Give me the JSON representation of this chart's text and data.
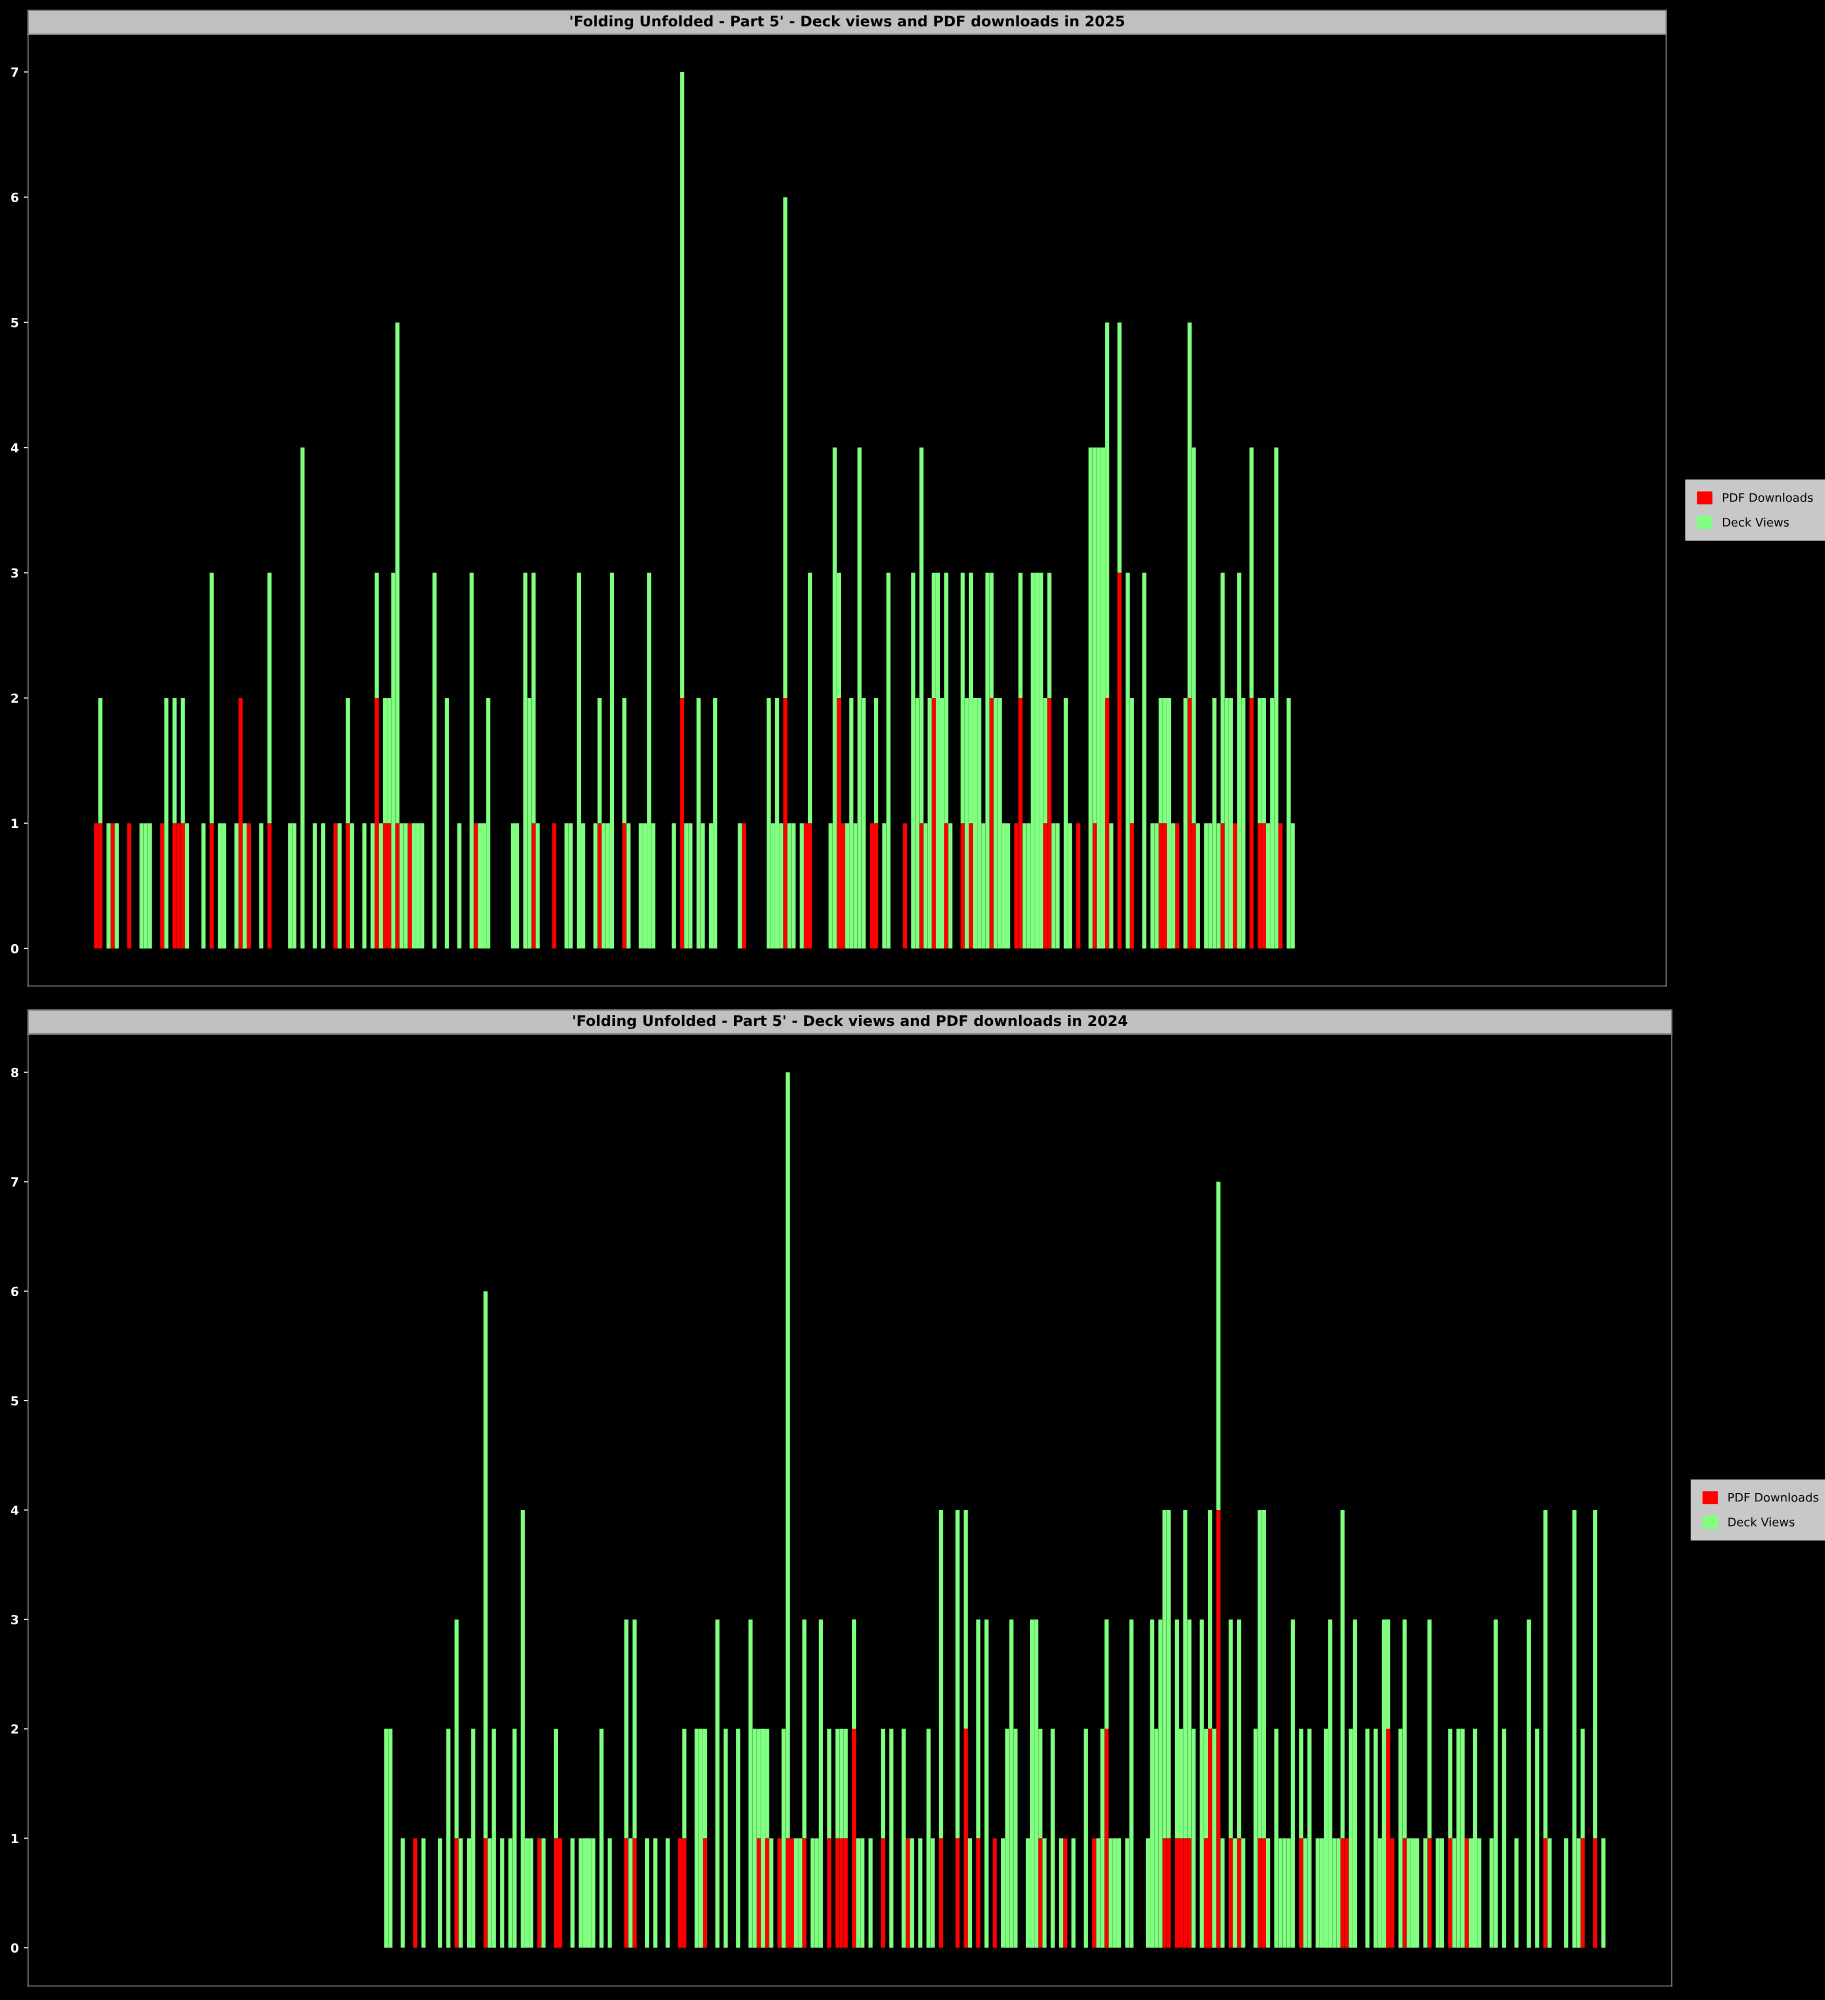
{
  "chart_data": [
    {
      "type": "bar",
      "title": "'Folding Unfolded - Part 5' - Deck views and PDF downloads in 2025",
      "stacked": true,
      "legend": "right",
      "tick_labels": "y",
      "ylim": [
        -0.3,
        7.3
      ],
      "yticks": [
        0,
        1,
        2,
        3,
        4,
        5,
        6,
        7
      ],
      "categories": [
        null,
        null,
        null,
        null,
        null,
        null,
        null,
        null,
        null,
        null,
        null,
        null,
        null,
        null,
        null,
        null,
        null,
        null,
        null,
        null,
        null,
        null,
        null,
        null,
        null,
        null,
        null,
        null,
        null,
        null,
        null,
        null,
        null,
        null,
        null,
        null,
        null,
        null,
        null,
        null,
        null,
        null,
        null,
        null,
        null,
        null,
        null,
        null,
        null,
        null,
        null,
        null,
        null,
        null,
        null,
        null,
        null,
        null,
        null,
        null,
        null,
        null,
        null,
        null,
        null,
        null,
        null,
        null,
        null,
        null,
        null,
        null,
        null,
        null,
        null,
        null,
        null,
        null,
        null,
        null,
        null,
        null,
        null,
        null,
        null,
        null,
        null,
        null,
        null,
        null,
        null,
        null,
        null,
        null,
        null,
        null,
        null,
        null,
        null,
        null,
        null,
        null,
        null,
        null,
        null,
        null,
        null,
        null,
        null,
        null,
        null,
        null,
        null,
        null,
        null,
        null,
        null,
        null,
        null,
        null,
        null,
        null,
        null,
        null,
        null,
        null,
        null,
        null,
        null,
        null,
        null,
        null,
        null,
        null,
        null,
        null,
        null,
        null,
        null,
        null,
        null,
        null,
        null,
        null,
        null,
        null,
        null,
        null,
        null,
        null,
        null,
        null,
        null,
        null,
        null,
        null,
        null,
        null,
        null,
        null,
        null,
        null,
        null,
        null,
        null,
        null,
        null,
        null,
        null,
        null,
        null,
        null,
        null,
        null,
        null,
        null,
        null,
        null,
        null,
        null,
        null,
        null,
        null,
        null,
        null,
        null,
        null,
        null,
        null,
        null,
        null,
        null,
        null,
        null,
        null,
        null,
        null,
        null,
        null,
        null,
        null,
        null,
        null,
        null,
        null,
        null,
        null,
        null,
        null,
        null,
        null,
        null,
        null,
        null,
        null,
        null,
        null,
        null,
        null,
        null,
        null,
        null,
        null,
        null,
        null,
        null,
        null,
        null,
        null,
        null,
        null,
        null,
        null,
        null,
        null,
        null,
        null,
        null,
        null,
        null,
        null,
        null,
        null,
        null,
        null,
        null,
        null,
        null,
        null,
        null,
        null,
        null,
        null,
        null,
        null,
        null,
        null,
        null,
        null,
        null,
        null,
        null,
        null,
        null,
        null,
        null,
        null,
        null,
        null,
        null,
        null,
        null,
        null,
        null,
        null,
        null,
        null,
        null,
        null,
        null,
        null,
        null,
        null,
        null,
        null,
        null,
        null,
        null,
        null,
        null,
        null,
        null,
        null,
        null,
        null,
        null,
        null,
        null,
        null,
        null,
        null,
        null,
        null,
        null,
        null,
        null,
        null,
        null,
        null,
        null,
        null,
        null,
        null,
        null,
        null,
        null,
        null,
        null,
        null,
        null,
        null,
        null,
        null,
        null,
        null,
        null,
        null,
        null,
        null,
        null,
        null,
        null,
        null,
        null,
        null,
        null,
        null,
        null,
        null,
        null,
        null,
        null,
        null,
        null,
        null,
        null,
        null,
        null,
        null,
        null,
        null,
        null,
        null,
        null,
        null,
        null,
        null,
        null,
        null,
        null,
        null,
        null,
        null,
        null,
        null,
        null,
        null,
        null,
        null,
        null,
        null,
        null,
        null,
        null,
        null,
        null,
        null,
        null,
        null,
        null,
        null,
        null,
        null,
        null,
        null,
        null,
        null,
        null,
        null,
        null,
        null,
        null,
        null,
        null,
        null,
        null,
        null
      ],
      "series": [
        {
          "name": "PDF Downloads",
          "color": "#ff0000",
          "values": [
            0,
            0,
            0,
            0,
            0,
            0,
            0,
            0,
            0,
            0,
            0,
            0,
            0,
            0,
            0,
            0,
            1,
            1,
            0,
            0,
            1,
            0,
            0,
            0,
            1,
            0,
            0,
            0,
            0,
            0,
            0,
            0,
            1,
            0,
            0,
            1,
            1,
            1,
            0,
            0,
            0,
            0,
            0,
            0,
            1,
            0,
            0,
            0,
            0,
            0,
            0,
            2,
            0,
            1,
            0,
            0,
            0,
            0,
            1,
            0,
            0,
            0,
            0,
            0,
            0,
            0,
            0,
            0,
            0,
            0,
            0,
            0,
            0,
            0,
            1,
            0,
            0,
            1,
            0,
            0,
            0,
            0,
            0,
            0,
            2,
            0,
            1,
            1,
            0,
            1,
            0,
            0,
            1,
            0,
            0,
            0,
            0,
            0,
            0,
            0,
            0,
            0,
            0,
            0,
            0,
            0,
            0,
            0,
            1,
            0,
            0,
            0,
            0,
            0,
            0,
            0,
            0,
            0,
            0,
            0,
            0,
            0,
            1,
            0,
            0,
            0,
            0,
            1,
            0,
            0,
            0,
            0,
            0,
            0,
            0,
            0,
            0,
            0,
            1,
            0,
            0,
            0,
            0,
            0,
            1,
            0,
            0,
            0,
            0,
            0,
            0,
            0,
            0,
            0,
            0,
            0,
            0,
            0,
            2,
            0,
            0,
            0,
            0,
            0,
            0,
            0,
            0,
            0,
            0,
            0,
            0,
            0,
            0,
            1,
            0,
            0,
            0,
            0,
            0,
            0,
            0,
            0,
            0,
            2,
            0,
            0,
            0,
            0,
            1,
            1,
            0,
            0,
            0,
            0,
            0,
            0,
            2,
            1,
            0,
            0,
            0,
            0,
            0,
            0,
            1,
            1,
            0,
            0,
            0,
            0,
            0,
            0,
            1,
            0,
            0,
            0,
            1,
            0,
            0,
            2,
            0,
            0,
            1,
            0,
            0,
            0,
            1,
            0,
            1,
            0,
            0,
            0,
            0,
            2,
            0,
            0,
            0,
            0,
            0,
            1,
            2,
            0,
            0,
            0,
            0,
            0,
            1,
            2,
            0,
            0,
            0,
            0,
            0,
            0,
            1,
            0,
            0,
            0,
            1,
            0,
            0,
            2,
            0,
            0,
            3,
            0,
            0,
            1,
            0,
            0,
            0,
            0,
            0,
            0,
            1,
            1,
            0,
            0,
            1,
            0,
            0,
            2,
            1,
            0,
            0,
            0,
            0,
            0,
            0,
            1,
            0,
            0,
            1,
            0,
            0,
            0,
            2,
            0,
            1,
            1,
            0,
            0,
            0,
            1,
            0,
            0,
            0,
            0,
            0,
            0,
            0,
            0,
            0,
            0,
            0,
            0,
            0,
            0,
            0,
            0,
            0,
            0,
            0,
            0,
            0,
            0,
            0,
            0,
            0,
            0,
            0,
            0,
            0,
            0,
            0,
            0,
            0,
            0,
            0,
            0,
            0,
            0,
            0,
            0,
            0,
            0,
            0,
            0,
            0,
            0,
            0,
            0,
            0,
            0,
            0,
            0,
            0,
            0,
            0,
            0,
            0,
            0,
            0,
            0,
            0,
            0,
            0,
            0,
            0,
            0,
            0,
            0,
            0,
            0,
            0,
            0,
            0,
            0,
            0,
            0,
            0,
            0,
            0,
            0,
            0,
            0,
            0,
            0,
            0,
            0,
            0,
            0,
            0,
            0,
            0,
            0,
            0
          ]
        },
        {
          "name": "Deck Views",
          "color": "#80ff80",
          "values": [
            0,
            0,
            0,
            0,
            0,
            0,
            0,
            0,
            0,
            0,
            0,
            0,
            0,
            0,
            0,
            0,
            0,
            1,
            0,
            1,
            0,
            1,
            0,
            0,
            0,
            0,
            0,
            1,
            1,
            1,
            0,
            0,
            0,
            2,
            0,
            1,
            0,
            1,
            1,
            0,
            0,
            0,
            1,
            0,
            2,
            0,
            1,
            1,
            0,
            0,
            1,
            0,
            1,
            0,
            0,
            0,
            1,
            0,
            2,
            0,
            0,
            0,
            0,
            1,
            1,
            0,
            4,
            0,
            0,
            1,
            0,
            1,
            0,
            0,
            0,
            1,
            0,
            1,
            1,
            0,
            0,
            1,
            0,
            1,
            1,
            1,
            1,
            1,
            3,
            4,
            1,
            1,
            0,
            1,
            1,
            1,
            0,
            0,
            3,
            0,
            0,
            2,
            0,
            0,
            1,
            0,
            0,
            3,
            0,
            1,
            1,
            2,
            0,
            0,
            0,
            0,
            0,
            1,
            1,
            0,
            3,
            2,
            2,
            1,
            0,
            0,
            0,
            0,
            0,
            0,
            1,
            1,
            0,
            3,
            1,
            0,
            0,
            1,
            1,
            1,
            1,
            3,
            0,
            0,
            1,
            1,
            0,
            0,
            1,
            1,
            3,
            1,
            0,
            0,
            0,
            0,
            1,
            0,
            5,
            1,
            1,
            0,
            2,
            1,
            0,
            1,
            2,
            0,
            0,
            0,
            0,
            0,
            1,
            0,
            0,
            0,
            0,
            0,
            0,
            2,
            1,
            2,
            1,
            4,
            1,
            1,
            0,
            1,
            0,
            2,
            0,
            0,
            0,
            0,
            1,
            4,
            1,
            0,
            1,
            2,
            1,
            4,
            2,
            0,
            0,
            1,
            0,
            1,
            3,
            0,
            0,
            0,
            0,
            0,
            3,
            2,
            3,
            1,
            2,
            1,
            3,
            2,
            2,
            1,
            0,
            0,
            2,
            2,
            2,
            2,
            2,
            1,
            3,
            1,
            2,
            2,
            1,
            1,
            0,
            0,
            1,
            1,
            1,
            3,
            3,
            3,
            1,
            1,
            1,
            1,
            0,
            2,
            1,
            0,
            0,
            0,
            0,
            4,
            3,
            4,
            4,
            3,
            1,
            0,
            2,
            0,
            3,
            1,
            0,
            0,
            3,
            0,
            1,
            1,
            1,
            1,
            2,
            1,
            0,
            0,
            2,
            3,
            3,
            1,
            0,
            1,
            1,
            2,
            1,
            2,
            2,
            2,
            0,
            3,
            2,
            0,
            2,
            0,
            1,
            1,
            1,
            2,
            4,
            0,
            0,
            2,
            1,
            0,
            0,
            0,
            0,
            0,
            0,
            0,
            0,
            0,
            0,
            0,
            0,
            0,
            0,
            0,
            0,
            0,
            0,
            0,
            0,
            0,
            0,
            0,
            0,
            0,
            0,
            0,
            0,
            0,
            0,
            0,
            0,
            0,
            0,
            0,
            0,
            0,
            0,
            0,
            0,
            0,
            0,
            0,
            0,
            0,
            0,
            0,
            0,
            0,
            0,
            0,
            0,
            0,
            0,
            0,
            0,
            0,
            0,
            0,
            0,
            0,
            0,
            0,
            0,
            0,
            0,
            0,
            0,
            0,
            0,
            0,
            0,
            0,
            0,
            0,
            0,
            0,
            0,
            0,
            0,
            0,
            0,
            0,
            0,
            0,
            0,
            0,
            0,
            0,
            0
          ]
        }
      ]
    },
    {
      "type": "bar",
      "title": "'Folding Unfolded - Part 5' - Deck views and PDF downloads in 2024",
      "stacked": true,
      "legend": "right",
      "tick_labels": "y",
      "ylim": [
        -0.35,
        8.35
      ],
      "yticks": [
        0,
        1,
        2,
        3,
        4,
        5,
        6,
        7,
        8
      ],
      "categories": [
        null,
        null,
        null,
        null,
        null,
        null,
        null,
        null,
        null,
        null,
        null,
        null,
        null,
        null,
        null,
        null,
        null,
        null,
        null,
        null,
        null,
        null,
        null,
        null,
        null,
        null,
        null,
        null,
        null,
        null,
        null,
        null,
        null,
        null,
        null,
        null,
        null,
        null,
        null,
        null,
        null,
        null,
        null,
        null,
        null,
        null,
        null,
        null,
        null,
        null,
        null,
        null,
        null,
        null,
        null,
        null,
        null,
        null,
        null,
        null,
        null,
        null,
        null,
        null,
        null,
        null,
        null,
        null,
        null,
        null,
        null,
        null,
        null,
        null,
        null,
        null,
        null,
        null,
        null,
        null,
        null,
        null,
        null,
        null,
        null,
        null,
        null,
        null,
        null,
        null,
        null,
        null,
        null,
        null,
        null,
        null,
        null,
        null,
        null,
        null,
        null,
        null,
        null,
        null,
        null,
        null,
        null,
        null,
        null,
        null,
        null,
        null,
        null,
        null,
        null,
        null,
        null,
        null,
        null,
        null,
        null,
        null,
        null,
        null,
        null,
        null,
        null,
        null,
        null,
        null,
        null,
        null,
        null,
        null,
        null,
        null,
        null,
        null,
        null,
        null,
        null,
        null,
        null,
        null,
        null,
        null,
        null,
        null,
        null,
        null,
        null,
        null,
        null,
        null,
        null,
        null,
        null,
        null,
        null,
        null,
        null,
        null,
        null,
        null,
        null,
        null,
        null,
        null,
        null,
        null,
        null,
        null,
        null,
        null,
        null,
        null,
        null,
        null,
        null,
        null,
        null,
        null,
        null,
        null,
        null,
        null,
        null,
        null,
        null,
        null,
        null,
        null,
        null,
        null,
        null,
        null,
        null,
        null,
        null,
        null,
        null,
        null,
        null,
        null,
        null,
        null,
        null,
        null,
        null,
        null,
        null,
        null,
        null,
        null,
        null,
        null,
        null,
        null,
        null,
        null,
        null,
        null,
        null,
        null,
        null,
        null,
        null,
        null,
        null,
        null,
        null,
        null,
        null,
        null,
        null,
        null,
        null,
        null,
        null,
        null,
        null,
        null,
        null,
        null,
        null,
        null,
        null,
        null,
        null,
        null,
        null,
        null,
        null,
        null,
        null,
        null,
        null,
        null,
        null,
        null,
        null,
        null,
        null,
        null,
        null,
        null,
        null,
        null,
        null,
        null,
        null,
        null,
        null,
        null,
        null,
        null,
        null,
        null,
        null,
        null,
        null,
        null,
        null,
        null,
        null,
        null,
        null,
        null,
        null,
        null,
        null,
        null,
        null,
        null,
        null,
        null,
        null,
        null,
        null,
        null,
        null,
        null,
        null,
        null,
        null,
        null,
        null,
        null,
        null,
        null,
        null,
        null,
        null,
        null,
        null,
        null,
        null,
        null,
        null,
        null,
        null,
        null,
        null,
        null,
        null,
        null,
        null,
        null,
        null,
        null,
        null,
        null,
        null,
        null,
        null,
        null,
        null,
        null,
        null,
        null,
        null,
        null,
        null,
        null,
        null,
        null,
        null,
        null,
        null,
        null,
        null,
        null,
        null,
        null,
        null,
        null,
        null,
        null,
        null,
        null,
        null,
        null,
        null,
        null,
        null,
        null,
        null,
        null,
        null,
        null,
        null,
        null,
        null,
        null,
        null,
        null,
        null,
        null,
        null,
        null,
        null,
        null,
        null,
        null,
        null,
        null,
        null,
        null,
        null,
        null,
        null,
        null,
        null,
        null,
        null,
        null,
        null
      ],
      "series": [
        {
          "name": "PDF Downloads",
          "color": "#ff0000",
          "values": [
            0,
            0,
            0,
            0,
            0,
            0,
            0,
            0,
            0,
            0,
            0,
            0,
            0,
            0,
            0,
            0,
            0,
            0,
            0,
            0,
            0,
            0,
            0,
            0,
            0,
            0,
            0,
            0,
            0,
            0,
            0,
            0,
            0,
            0,
            0,
            0,
            0,
            0,
            0,
            0,
            0,
            0,
            0,
            0,
            0,
            0,
            0,
            0,
            0,
            0,
            0,
            0,
            0,
            0,
            0,
            0,
            0,
            0,
            0,
            0,
            0,
            0,
            0,
            0,
            0,
            0,
            0,
            0,
            0,
            0,
            0,
            0,
            0,
            0,
            0,
            0,
            0,
            0,
            0,
            0,
            0,
            0,
            0,
            0,
            0,
            0,
            0,
            0,
            0,
            0,
            0,
            0,
            0,
            1,
            0,
            0,
            0,
            0,
            0,
            0,
            0,
            0,
            0,
            1,
            0,
            0,
            0,
            0,
            0,
            0,
            1,
            0,
            0,
            0,
            0,
            0,
            0,
            0,
            0,
            0,
            0,
            0,
            0,
            1,
            0,
            0,
            0,
            1,
            1,
            0,
            0,
            0,
            0,
            0,
            0,
            0,
            0,
            0,
            0,
            0,
            0,
            0,
            0,
            0,
            1,
            0,
            1,
            0,
            0,
            0,
            0,
            0,
            0,
            0,
            0,
            0,
            0,
            1,
            1,
            0,
            0,
            0,
            0,
            1,
            0,
            0,
            0,
            0,
            0,
            0,
            0,
            0,
            0,
            0,
            0,
            0,
            1,
            0,
            1,
            0,
            0,
            1,
            0,
            1,
            1,
            0,
            0,
            1,
            0,
            0,
            0,
            0,
            0,
            1,
            0,
            1,
            1,
            1,
            0,
            2,
            0,
            0,
            0,
            0,
            0,
            0,
            1,
            0,
            0,
            0,
            0,
            0,
            1,
            0,
            0,
            0,
            0,
            0,
            0,
            0,
            1,
            0,
            0,
            0,
            1,
            0,
            2,
            0,
            0,
            1,
            0,
            0,
            0,
            1,
            0,
            0,
            0,
            0,
            0,
            0,
            0,
            0,
            0,
            0,
            1,
            0,
            0,
            0,
            0,
            0,
            1,
            0,
            0,
            0,
            0,
            0,
            0,
            1,
            0,
            0,
            2,
            0,
            0,
            0,
            0,
            0,
            0,
            0,
            0,
            0,
            0,
            0,
            0,
            0,
            1,
            1,
            0,
            1,
            1,
            1,
            1,
            0,
            0,
            0,
            1,
            2,
            0,
            4,
            0,
            0,
            1,
            0,
            1,
            0,
            0,
            0,
            0,
            1,
            1,
            0,
            0,
            0,
            0,
            0,
            0,
            0,
            0,
            1,
            0,
            0,
            0,
            0,
            0,
            0,
            0,
            0,
            0,
            1,
            1,
            0,
            0,
            0,
            0,
            0,
            0,
            0,
            0,
            0,
            2,
            1,
            0,
            0,
            1,
            0,
            0,
            0,
            0,
            0,
            1,
            0,
            0,
            0,
            0,
            1,
            0,
            0,
            0,
            1,
            0,
            0,
            0,
            0,
            0,
            0,
            0,
            0,
            0,
            0,
            0,
            0,
            0,
            0,
            0,
            0,
            0,
            0,
            1,
            0,
            0,
            0,
            0,
            0,
            0,
            0,
            0,
            1,
            0,
            0,
            1,
            0,
            0,
            0,
            0,
            0,
            0,
            0,
            0,
            0,
            0,
            0,
            0,
            0,
            0,
            0,
            0,
            0,
            0
          ]
        },
        {
          "name": "Deck Views",
          "color": "#80ff80",
          "values": [
            0,
            0,
            0,
            0,
            0,
            0,
            0,
            0,
            0,
            0,
            0,
            0,
            0,
            0,
            0,
            0,
            0,
            0,
            0,
            0,
            0,
            0,
            0,
            0,
            0,
            0,
            0,
            0,
            0,
            0,
            0,
            0,
            0,
            0,
            0,
            0,
            0,
            0,
            0,
            0,
            0,
            0,
            0,
            0,
            0,
            0,
            0,
            0,
            0,
            0,
            0,
            0,
            0,
            0,
            0,
            0,
            0,
            0,
            0,
            0,
            0,
            0,
            0,
            0,
            0,
            0,
            0,
            0,
            0,
            0,
            0,
            0,
            0,
            0,
            0,
            0,
            0,
            0,
            0,
            0,
            0,
            0,
            0,
            0,
            0,
            0,
            2,
            2,
            0,
            0,
            1,
            0,
            0,
            0,
            0,
            1,
            0,
            0,
            0,
            1,
            0,
            2,
            0,
            2,
            1,
            0,
            1,
            2,
            0,
            0,
            5,
            1,
            2,
            0,
            1,
            0,
            1,
            2,
            0,
            4,
            1,
            1,
            0,
            0,
            1,
            0,
            0,
            1,
            0,
            0,
            0,
            1,
            0,
            1,
            1,
            1,
            1,
            0,
            2,
            0,
            1,
            0,
            0,
            0,
            2,
            1,
            2,
            0,
            0,
            1,
            0,
            1,
            0,
            0,
            1,
            0,
            0,
            0,
            1,
            0,
            0,
            2,
            2,
            1,
            0,
            0,
            3,
            0,
            2,
            0,
            0,
            2,
            0,
            0,
            3,
            2,
            1,
            2,
            1,
            1,
            0,
            0,
            2,
            7,
            0,
            1,
            1,
            2,
            0,
            1,
            1,
            3,
            0,
            1,
            0,
            1,
            1,
            1,
            0,
            1,
            1,
            1,
            0,
            1,
            0,
            0,
            1,
            0,
            2,
            0,
            0,
            2,
            0,
            1,
            0,
            1,
            0,
            2,
            1,
            0,
            3,
            0,
            0,
            0,
            3,
            0,
            2,
            1,
            0,
            2,
            0,
            3,
            0,
            0,
            0,
            1,
            2,
            3,
            2,
            0,
            0,
            1,
            3,
            3,
            1,
            1,
            0,
            2,
            0,
            1,
            0,
            0,
            1,
            0,
            0,
            2,
            0,
            0,
            1,
            2,
            1,
            1,
            1,
            1,
            0,
            1,
            3,
            0,
            0,
            0,
            1,
            3,
            2,
            3,
            3,
            3,
            0,
            2,
            1,
            3,
            2,
            2,
            0,
            3,
            1,
            2,
            2,
            3,
            1,
            0,
            2,
            1,
            2,
            1,
            0,
            0,
            2,
            3,
            3,
            1,
            0,
            2,
            1,
            1,
            1,
            3,
            0,
            1,
            1,
            2,
            0,
            1,
            1,
            2,
            3,
            1,
            1,
            3,
            0,
            2,
            3,
            0,
            0,
            2,
            0,
            2,
            1,
            3,
            1,
            0,
            0,
            2,
            2,
            1,
            1,
            1,
            0,
            1,
            2,
            0,
            1,
            1,
            0,
            1,
            1,
            2,
            2,
            0,
            1,
            2,
            1,
            0,
            0,
            1,
            3,
            0,
            2,
            0,
            0,
            1,
            0,
            0,
            3,
            0,
            2,
            0,
            3,
            1,
            0,
            0,
            0,
            1,
            0,
            4,
            1,
            1,
            0,
            0,
            3,
            0,
            1,
            0,
            0,
            0,
            0,
            0,
            0,
            0,
            0,
            0,
            0,
            0,
            0,
            0,
            0,
            0,
            0
          ]
        }
      ]
    }
  ]
}
